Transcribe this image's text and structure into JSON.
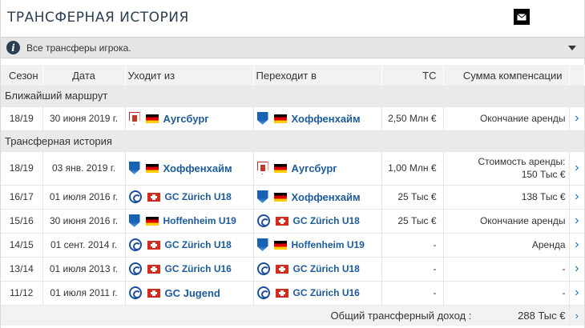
{
  "title": "Трансферная история",
  "info": {
    "text": "Все трансферы игрока."
  },
  "columns": {
    "season": "Сезон",
    "date": "Дата",
    "from": "Уходит из",
    "to": "Переходит в",
    "mv": "ТС",
    "fee": "Сумма компенсации"
  },
  "sections": {
    "upcoming": "Ближайший маршрут",
    "history": "Трансферная история"
  },
  "upcoming": [
    {
      "season": "18/19",
      "date": "30 июня 2019 г.",
      "from": {
        "name": "Аугсбург",
        "crest": "augsburg-crest",
        "flag": "de"
      },
      "to": {
        "name": "Хоффенхайм",
        "crest": "hoffenheim-crest",
        "flag": "de"
      },
      "mv": "2,50 Млн €",
      "fee": "Окончание аренды"
    }
  ],
  "history": [
    {
      "season": "18/19",
      "date": "03 янв. 2019 г.",
      "from": {
        "name": "Хоффенхайм",
        "crest": "hoffenheim-crest",
        "flag": "de"
      },
      "to": {
        "name": "Аугсбург",
        "crest": "augsburg-crest",
        "flag": "de"
      },
      "mv": "1,00 Млн €",
      "fee_line1": "Стоимость аренды:",
      "fee_line2": "150 Тыс €"
    },
    {
      "season": "16/17",
      "date": "01 июля 2016 г.",
      "from": {
        "name": "GC Zürich U18",
        "crest": "gc-crest",
        "flag": "ch"
      },
      "to": {
        "name": "Хоффенхайм",
        "crest": "hoffenheim-crest",
        "flag": "de"
      },
      "mv": "25 Тыс €",
      "fee": "138 Тыс €"
    },
    {
      "season": "15/16",
      "date": "30 июня 2016 г.",
      "from": {
        "name": "Hoffenheim U19",
        "crest": "hoffenheim-crest",
        "flag": "de"
      },
      "to": {
        "name": "GC Zürich U18",
        "crest": "gc-crest",
        "flag": "ch"
      },
      "mv": "25 Тыс €",
      "fee": "Окончание аренды"
    },
    {
      "season": "14/15",
      "date": "01 сент. 2014 г.",
      "from": {
        "name": "GC Zürich U18",
        "crest": "gc-crest",
        "flag": "ch"
      },
      "to": {
        "name": "Hoffenheim U19",
        "crest": "hoffenheim-crest",
        "flag": "de"
      },
      "mv": "-",
      "fee": "Аренда"
    },
    {
      "season": "13/14",
      "date": "01 июля 2013 г.",
      "from": {
        "name": "GC Zürich U16",
        "crest": "gc-crest",
        "flag": "ch"
      },
      "to": {
        "name": "GC Zürich U18",
        "crest": "gc-crest",
        "flag": "ch"
      },
      "mv": "-",
      "fee": "-"
    },
    {
      "season": "11/12",
      "date": "01 июля 2011 г.",
      "from": {
        "name": "GC Jugend",
        "crest": "gc-crest",
        "flag": "ch"
      },
      "to": {
        "name": "GC Zürich U16",
        "crest": "gc-crest",
        "flag": "ch"
      },
      "mv": "-",
      "fee": "-"
    }
  ],
  "total": {
    "label": "Общий трансферный доход :",
    "value": "288 Тыс €"
  },
  "icons": {
    "mail": "mail-icon",
    "info": "info-icon",
    "collapse": "chevron-down-icon",
    "row_link": "chevron-right-icon"
  }
}
